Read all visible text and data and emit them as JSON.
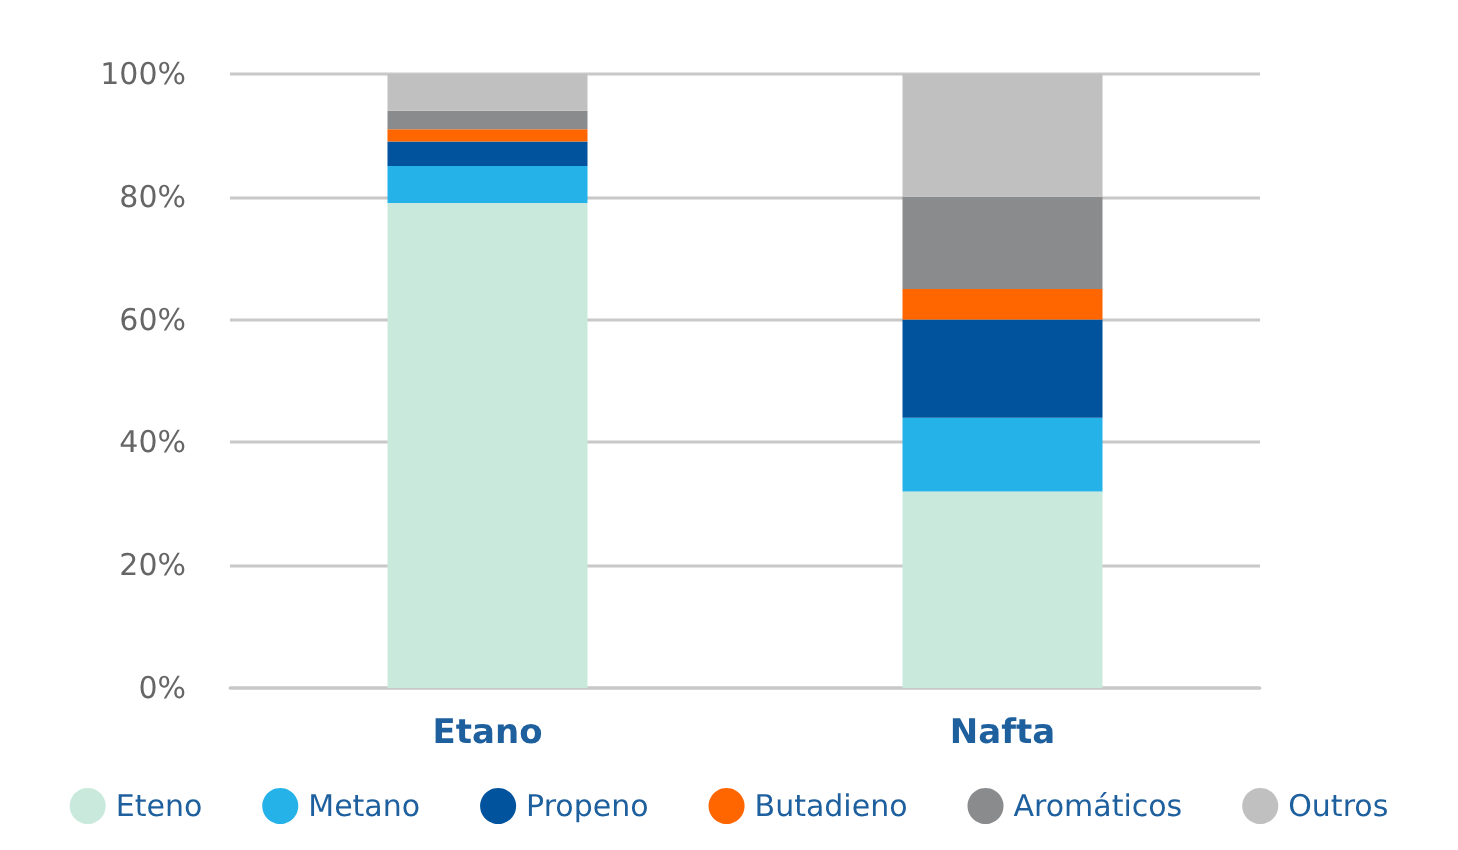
{
  "chart_data": {
    "type": "bar",
    "stacked": true,
    "categories": [
      "Etano",
      "Nafta"
    ],
    "series": [
      {
        "name": "Eteno",
        "color": "#c9e9dd",
        "values": [
          79,
          32
        ]
      },
      {
        "name": "Metano",
        "color": "#24b2e8",
        "values": [
          6,
          12
        ]
      },
      {
        "name": "Propeno",
        "color": "#00539c",
        "values": [
          4,
          16
        ]
      },
      {
        "name": "Butadieno",
        "color": "#ff6600",
        "values": [
          2,
          5
        ]
      },
      {
        "name": "Aromáticos",
        "color": "#8a8b8d",
        "values": [
          3,
          15
        ]
      },
      {
        "name": "Outros",
        "color": "#bfc0bf",
        "values": [
          6,
          20
        ]
      }
    ],
    "ylim": [
      0,
      100
    ],
    "yticks": [
      {
        "value": 0,
        "label": "0%"
      },
      {
        "value": 20,
        "label": "20%"
      },
      {
        "value": 40,
        "label": "40%"
      },
      {
        "value": 60,
        "label": "60%"
      },
      {
        "value": 80,
        "label": "80%"
      },
      {
        "value": 100,
        "label": "100%"
      }
    ],
    "grid": "y",
    "legend": "bottom"
  }
}
